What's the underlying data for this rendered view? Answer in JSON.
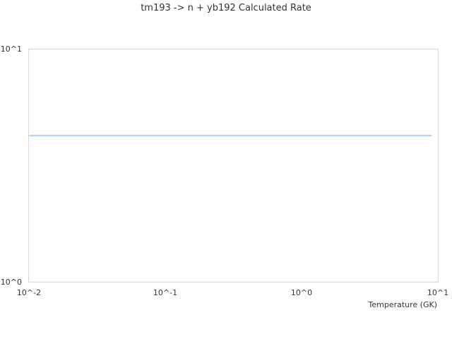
{
  "chart_data": {
    "type": "line",
    "title": "tm193 -> n + yb192 Calculated Rate",
    "xlabel": "Temperature (GK)",
    "ylabel": "",
    "x_scale": "log",
    "y_scale": "log",
    "xlim": [
      0.01,
      10
    ],
    "ylim": [
      1,
      10
    ],
    "x_tick_labels": [
      "10^-2",
      "10^-1",
      "10^0",
      "10^1"
    ],
    "y_tick_labels": [
      "10^0",
      "10^1"
    ],
    "grid": false,
    "legend": "none",
    "series": [
      {
        "color": "#5aa8f0",
        "x": [
          0.01,
          9
        ],
        "y": [
          4.24,
          4.24
        ]
      }
    ]
  }
}
